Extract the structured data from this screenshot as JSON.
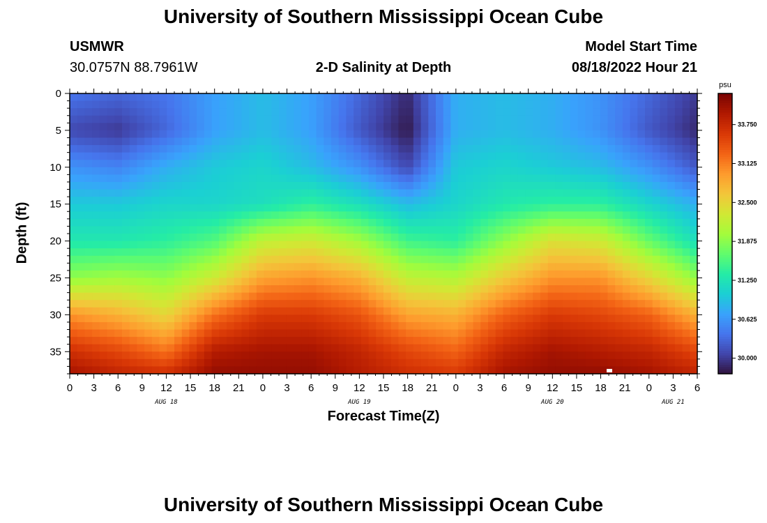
{
  "page": {
    "title": "University of Southern Mississippi Ocean Cube",
    "footer_title": "University of Southern Mississippi Ocean Cube",
    "station": "USMWR",
    "coords": "30.0757N  88.7961W",
    "model_label": "Model Start Time",
    "model_time": "08/18/2022 Hour 21"
  },
  "chart_data": {
    "type": "heatmap",
    "title": "2-D Salinity at Depth",
    "xlabel": "Forecast Time(Z)",
    "ylabel": "Depth (ft)",
    "colorbar_unit": "psu",
    "colorbar_ticks": [
      30.0,
      30.625,
      31.25,
      31.875,
      32.5,
      33.125,
      33.75
    ],
    "colorbar_tick_labels": [
      "30.000",
      "30.625",
      "31.250",
      "31.875",
      "32.500",
      "33.125",
      "33.750"
    ],
    "colorbar_range": [
      29.75,
      34.25
    ],
    "colormap": [
      "#30123b",
      "#4145ab",
      "#4675ed",
      "#39a2fc",
      "#1bcfd4",
      "#24eca6",
      "#61fc6c",
      "#a4fc3b",
      "#d1e834",
      "#f3c63a",
      "#fe9b2d",
      "#f36315",
      "#d93806",
      "#b11901",
      "#7a0403"
    ],
    "x_tick_labels": [
      "0",
      "3",
      "6",
      "9",
      "12",
      "15",
      "18",
      "21",
      "0",
      "3",
      "6",
      "9",
      "12",
      "15",
      "18",
      "21",
      "0",
      "3",
      "6",
      "9",
      "12",
      "15",
      "18",
      "21",
      "0",
      "3",
      "6"
    ],
    "x_hours_range": [
      0,
      78
    ],
    "date_labels": [
      {
        "text": "AUG 18",
        "hour": 12
      },
      {
        "text": "AUG 19",
        "hour": 36
      },
      {
        "text": "AUG 20",
        "hour": 60
      },
      {
        "text": "AUG 21",
        "hour": 75
      }
    ],
    "y_ticks": [
      0,
      5,
      10,
      15,
      20,
      25,
      30,
      35
    ],
    "ylim": [
      0,
      38
    ],
    "y_inverted": true,
    "depth_grid": [
      0,
      5,
      10,
      15,
      20,
      25,
      30,
      35,
      38
    ],
    "time_grid": [
      0,
      6,
      12,
      18,
      24,
      30,
      36,
      42,
      48,
      54,
      60,
      66,
      72,
      78
    ],
    "salinity": [
      [
        30.4,
        30.3,
        30.4,
        30.7,
        30.9,
        30.7,
        30.3,
        29.9,
        30.8,
        30.9,
        30.8,
        30.6,
        30.3,
        30.0
      ],
      [
        30.1,
        30.0,
        30.3,
        30.7,
        30.9,
        30.7,
        30.2,
        29.8,
        30.8,
        30.9,
        30.8,
        30.6,
        30.2,
        29.9
      ],
      [
        30.6,
        30.5,
        30.8,
        31.0,
        31.1,
        30.9,
        30.6,
        30.1,
        31.0,
        31.1,
        31.0,
        30.9,
        30.6,
        30.2
      ],
      [
        31.0,
        31.0,
        31.1,
        31.1,
        31.2,
        31.4,
        31.2,
        30.9,
        31.1,
        31.3,
        31.4,
        31.4,
        31.1,
        30.8
      ],
      [
        31.3,
        31.3,
        31.4,
        31.6,
        32.2,
        32.3,
        32.0,
        31.5,
        31.4,
        31.9,
        32.4,
        32.3,
        31.7,
        31.2
      ],
      [
        31.9,
        32.0,
        31.9,
        32.3,
        32.9,
        33.0,
        32.8,
        32.2,
        32.1,
        32.6,
        33.0,
        33.0,
        32.5,
        31.9
      ],
      [
        33.0,
        32.8,
        32.5,
        33.2,
        33.6,
        33.6,
        33.4,
        32.9,
        32.8,
        33.3,
        33.6,
        33.5,
        33.3,
        32.8
      ],
      [
        33.7,
        33.5,
        33.2,
        33.9,
        34.0,
        34.0,
        33.8,
        33.5,
        33.3,
        33.8,
        34.0,
        33.9,
        33.8,
        33.5
      ],
      [
        34.0,
        33.8,
        33.7,
        34.1,
        34.1,
        34.1,
        33.9,
        33.7,
        33.6,
        34.0,
        34.1,
        34.1,
        34.0,
        33.8
      ]
    ]
  }
}
